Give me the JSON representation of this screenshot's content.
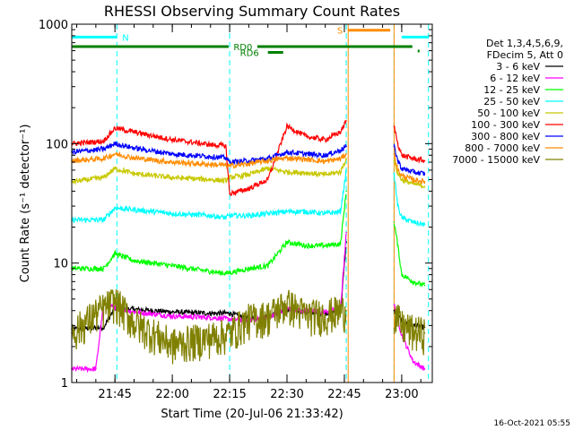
{
  "chart_data": {
    "type": "line",
    "title": "RHESSI Observing Summary Count Rates",
    "xlabel": "Start Time (20-Jul-06 21:33:42)",
    "ylabel": "Count Rate (s⁻¹ detector⁻¹)",
    "x_scale": "time",
    "y_scale": "log",
    "xlim": [
      "21:33:42",
      "23:08:00"
    ],
    "ylim": [
      1,
      1000
    ],
    "x_ticks": [
      "21:45",
      "22:00",
      "22:15",
      "22:30",
      "22:45",
      "23:00"
    ],
    "y_ticks": [
      "1",
      "10",
      "100",
      "1000"
    ],
    "legend": {
      "placement": "top-right",
      "header": [
        "Det 1,3,4,5,6,9,",
        "FDecim 5, Att 0"
      ]
    },
    "timestamp": "16-Oct-2021 05:55",
    "segments": [
      {
        "start": "21:33:42",
        "end": "22:45:30"
      },
      {
        "start": "22:58:00",
        "end": "23:06:00"
      }
    ],
    "series": [
      {
        "name": "3 - 6 keV",
        "color": "#000000",
        "x": [
          "21:33:42",
          "21:42:00",
          "21:45:00",
          "21:50:00",
          "22:00:00",
          "22:10:00",
          "22:15:00",
          "22:20:00",
          "22:25:00",
          "22:30:00",
          "22:35:00",
          "22:40:00",
          "22:44:00",
          "22:45:30",
          "22:58:00",
          "23:00:00",
          "23:03:00",
          "23:06:00"
        ],
        "y": [
          2.8,
          2.9,
          4.2,
          4.1,
          3.9,
          3.8,
          3.8,
          3.4,
          3.6,
          4.1,
          3.9,
          3.8,
          4.0,
          15,
          4.0,
          3.3,
          3.0,
          2.9
        ]
      },
      {
        "name": "6 - 12 keV",
        "color": "#ff00ff",
        "x": [
          "21:33:42",
          "21:40:00",
          "21:42:00",
          "21:45:00",
          "21:50:00",
          "22:00:00",
          "22:10:00",
          "22:15:00",
          "22:20:00",
          "22:25:00",
          "22:30:00",
          "22:35:00",
          "22:40:00",
          "22:44:00",
          "22:45:30",
          "22:58:00",
          "23:00:00",
          "23:03:00",
          "23:06:00"
        ],
        "y": [
          1.3,
          1.3,
          4.5,
          4.3,
          3.9,
          3.6,
          3.5,
          3.4,
          3.3,
          3.5,
          4.1,
          4.0,
          3.9,
          4.2,
          18,
          4.5,
          2.5,
          1.5,
          1.3
        ]
      },
      {
        "name": "12 - 25 keV",
        "color": "#00ff00",
        "x": [
          "21:33:42",
          "21:42:00",
          "21:45:00",
          "21:50:00",
          "22:00:00",
          "22:10:00",
          "22:14:00",
          "22:15:00",
          "22:20:00",
          "22:25:00",
          "22:30:00",
          "22:35:00",
          "22:40:00",
          "22:44:00",
          "22:45:30",
          "22:58:00",
          "22:59:00",
          "23:00:00",
          "23:03:00",
          "23:06:00"
        ],
        "y": [
          9,
          9,
          12,
          10.5,
          9.5,
          8.5,
          8.2,
          8.3,
          9,
          9.5,
          15,
          14,
          14,
          14.5,
          40,
          22,
          14,
          8,
          7,
          6.5
        ]
      },
      {
        "name": "25 - 50 keV",
        "color": "#00ffff",
        "x": [
          "21:33:42",
          "21:42:00",
          "21:45:00",
          "21:50:00",
          "22:00:00",
          "22:10:00",
          "22:14:00",
          "22:15:00",
          "22:20:00",
          "22:25:00",
          "22:30:00",
          "22:35:00",
          "22:40:00",
          "22:44:00",
          "22:45:30",
          "22:58:00",
          "22:59:00",
          "23:00:00",
          "23:03:00",
          "23:06:00"
        ],
        "y": [
          23,
          23,
          29,
          28,
          26,
          25,
          24,
          25,
          25,
          26,
          27,
          27,
          26,
          27,
          60,
          55,
          30,
          24,
          22,
          21
        ]
      },
      {
        "name": "50 - 100 keV",
        "color": "#c8c800",
        "x": [
          "21:33:42",
          "21:42:00",
          "21:45:00",
          "21:50:00",
          "22:00:00",
          "22:10:00",
          "22:14:00",
          "22:15:00",
          "22:20:00",
          "22:25:00",
          "22:30:00",
          "22:35:00",
          "22:40:00",
          "22:44:00",
          "22:45:30",
          "22:58:00",
          "22:59:00",
          "23:00:00",
          "23:03:00",
          "23:06:00"
        ],
        "y": [
          48,
          52,
          62,
          56,
          52,
          50,
          49,
          52,
          55,
          62,
          58,
          57,
          55,
          58,
          75,
          72,
          56,
          50,
          46,
          44
        ]
      },
      {
        "name": "100 - 300 keV",
        "color": "#ff0000",
        "x": [
          "21:33:42",
          "21:42:00",
          "21:45:00",
          "21:50:00",
          "22:00:00",
          "22:10:00",
          "22:14:00",
          "22:15:00",
          "22:20:00",
          "22:25:00",
          "22:30:00",
          "22:35:00",
          "22:40:00",
          "22:44:00",
          "22:45:30",
          "22:58:00",
          "22:59:00",
          "23:00:00",
          "23:03:00",
          "23:06:00"
        ],
        "y": [
          100,
          105,
          135,
          125,
          108,
          98,
          96,
          38,
          42,
          50,
          140,
          115,
          108,
          125,
          155,
          140,
          100,
          80,
          75,
          72
        ]
      },
      {
        "name": "300 - 800 keV",
        "color": "#0000ff",
        "x": [
          "21:33:42",
          "21:42:00",
          "21:45:00",
          "21:50:00",
          "22:00:00",
          "22:10:00",
          "22:14:00",
          "22:15:00",
          "22:20:00",
          "22:25:00",
          "22:30:00",
          "22:35:00",
          "22:40:00",
          "22:44:00",
          "22:45:30",
          "22:58:00",
          "22:59:00",
          "23:00:00",
          "23:03:00",
          "23:06:00"
        ],
        "y": [
          85,
          90,
          100,
          92,
          82,
          78,
          76,
          70,
          72,
          75,
          85,
          82,
          80,
          88,
          95,
          95,
          72,
          62,
          58,
          56
        ]
      },
      {
        "name": "800 - 7000 keV",
        "color": "#ff8c00",
        "x": [
          "21:33:42",
          "21:42:00",
          "21:45:00",
          "21:50:00",
          "22:00:00",
          "22:10:00",
          "22:14:00",
          "22:15:00",
          "22:20:00",
          "22:25:00",
          "22:30:00",
          "22:35:00",
          "22:40:00",
          "22:44:00",
          "22:45:30",
          "22:58:00",
          "22:59:00",
          "23:00:00",
          "23:03:00",
          "23:06:00"
        ],
        "y": [
          72,
          75,
          82,
          76,
          70,
          67,
          66,
          65,
          68,
          72,
          76,
          74,
          71,
          75,
          82,
          82,
          60,
          54,
          50,
          48
        ]
      },
      {
        "name": "7000 - 15000 keV",
        "color": "#808000",
        "x": [
          "21:33:42",
          "21:40:00",
          "21:45:00",
          "21:50:00",
          "22:00:00",
          "22:10:00",
          "22:15:00",
          "22:20:00",
          "22:25:00",
          "22:30:00",
          "22:35:00",
          "22:40:00",
          "22:44:00",
          "22:45:30",
          "22:58:00",
          "23:00:00",
          "23:03:00",
          "23:06:00"
        ],
        "y": [
          2.6,
          3.8,
          4.8,
          3.2,
          2.1,
          2.4,
          2.6,
          3.4,
          3.6,
          4.6,
          3.7,
          3.7,
          4.0,
          4.0,
          3.8,
          3.0,
          2.7,
          2.6
        ]
      }
    ],
    "annotations": [
      {
        "label": "N",
        "start": "21:33:42",
        "end": "21:45:30",
        "y": 780,
        "color": "#00ffff"
      },
      {
        "label": "N",
        "start": "23:00:00",
        "end": "23:07:00",
        "y": 780,
        "color": "#00ffff"
      },
      {
        "label": "S",
        "start": "22:46:00",
        "end": "22:57:00",
        "y": 890,
        "color": "#ff8c00"
      },
      {
        "label": "RD0",
        "start": "21:33:42",
        "end": "23:07:00",
        "y": 650,
        "color": "#008000"
      },
      {
        "label": "RD6",
        "start": "22:25:00",
        "end": "22:29:00",
        "y": 580,
        "color": "#008000"
      }
    ],
    "vlines_dashed_cyan": [
      "21:45:30",
      "22:15:00",
      "22:45:30",
      "22:58:00",
      "23:07:00"
    ],
    "vlines_orange": [
      "22:46:00",
      "22:58:00"
    ]
  }
}
